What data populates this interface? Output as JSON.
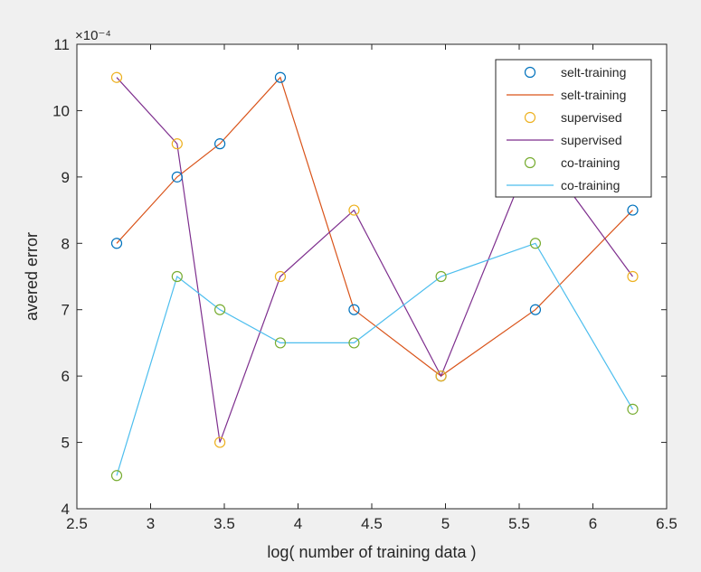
{
  "chart_data": {
    "type": "line",
    "title": "",
    "xlabel": "log( number of training data )",
    "ylabel": "avered error",
    "y_exponent_label": "×10⁻⁴",
    "xlim": [
      2.5,
      6.5
    ],
    "ylim": [
      4,
      11
    ],
    "xticks": [
      2.5,
      3,
      3.5,
      4,
      4.5,
      5,
      5.5,
      6,
      6.5
    ],
    "xtick_labels": [
      "2.5",
      "3",
      "3.5",
      "4",
      "4.5",
      "5",
      "5.5",
      "6",
      "6.5"
    ],
    "yticks": [
      4,
      5,
      6,
      7,
      8,
      9,
      10,
      11
    ],
    "ytick_labels": [
      "4",
      "5",
      "6",
      "7",
      "8",
      "9",
      "10",
      "11"
    ],
    "grid": false,
    "legend_position": "top-right",
    "x": [
      2.77,
      3.18,
      3.47,
      3.88,
      4.38,
      4.97,
      5.61,
      6.27
    ],
    "series": [
      {
        "name": "selt-training",
        "style": "markers",
        "marker": "circle",
        "color": "#0072BD",
        "values": [
          8,
          9,
          9.5,
          10.5,
          7,
          6,
          7,
          8.5
        ]
      },
      {
        "name": "selt-training",
        "style": "line",
        "color": "#D95319",
        "values": [
          8,
          9,
          9.5,
          10.5,
          7,
          6,
          7,
          8.5
        ]
      },
      {
        "name": "supervised",
        "style": "markers",
        "marker": "circle",
        "color": "#EDB120",
        "values": [
          10.5,
          9.5,
          5,
          7.5,
          8.5,
          6,
          9.5,
          7.5
        ]
      },
      {
        "name": "supervised",
        "style": "line",
        "color": "#7E2F8E",
        "values": [
          10.5,
          9.5,
          5,
          7.5,
          8.5,
          6,
          9.5,
          7.5
        ]
      },
      {
        "name": "co-training",
        "style": "markers",
        "marker": "circle",
        "color": "#77AC30",
        "values": [
          4.5,
          7.5,
          7,
          6.5,
          6.5,
          7.5,
          8,
          5.5
        ]
      },
      {
        "name": "co-training",
        "style": "line",
        "color": "#4DBEEE",
        "values": [
          4.5,
          7.5,
          7,
          6.5,
          6.5,
          7.5,
          8,
          5.5
        ]
      }
    ]
  }
}
